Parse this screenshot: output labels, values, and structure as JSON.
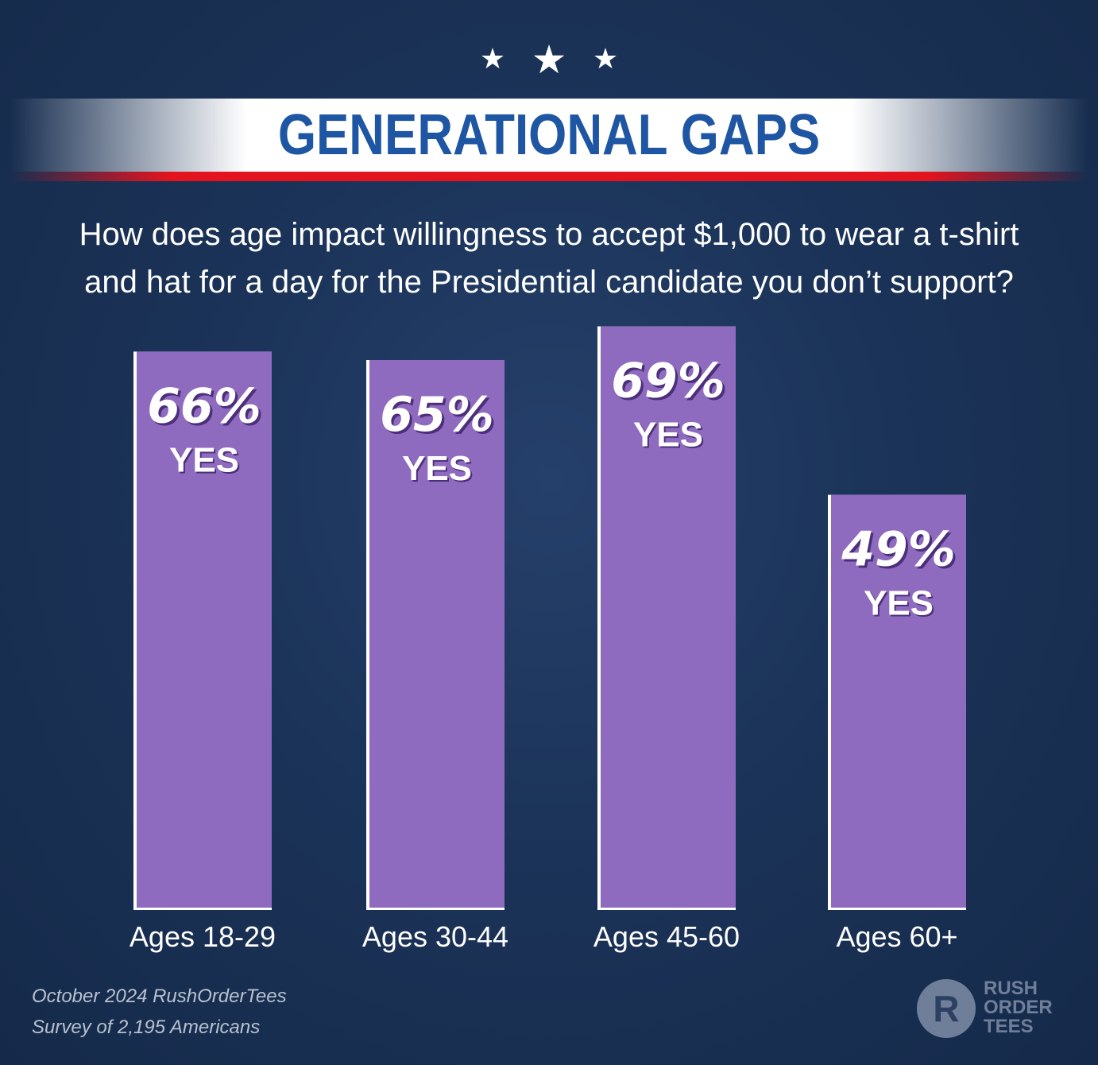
{
  "header": {
    "title": "GENERATIONAL GAPS",
    "question_line1": "How does age impact willingness to accept $1,000 to wear a t-shirt",
    "question_line2": "and hat for a day for the Presidential candidate you don’t support?"
  },
  "chart_data": {
    "type": "bar",
    "categories": [
      "Ages 18-29",
      "Ages 30-44",
      "Ages 45-60",
      "Ages 60+"
    ],
    "values": [
      66,
      65,
      69,
      49
    ],
    "value_suffix": "%",
    "bar_label": "YES",
    "title": "GENERATIONAL GAPS",
    "xlabel": "",
    "ylabel": "",
    "grid": false,
    "bar_color": "#8e6bbf"
  },
  "footer": {
    "source_line1": "October 2024 RushOrderTees",
    "source_line2": "Survey of 2,195 Americans"
  },
  "logo": {
    "letter": "R",
    "line1": "RUSH",
    "line2": "ORDER",
    "line3": "TEES"
  }
}
